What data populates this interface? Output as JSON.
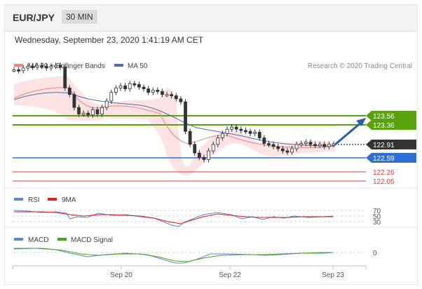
{
  "header": {
    "pair": "EUR/JPY",
    "timeframe": "30 MIN"
  },
  "datetime": "Wednesday, September 23, 2020 1:41:19 AM CET",
  "legend": {
    "ma20": "MA 20 + Bollinger Bands",
    "ma50": "MA 50",
    "credit": "Research © 2020 Trading Central"
  },
  "colors": {
    "resistance": "#58a30c",
    "support": "#2d6fd4",
    "target": "#e23b3b",
    "price": "#333333",
    "ma20": "#f08080",
    "ma50": "#4e6fa8",
    "bollinger": "#fde3e3",
    "rsi": "#5b86d8",
    "rsi_ma": "#e01e1e",
    "macd": "#5b86d8",
    "macd_signal": "#4ca31a"
  },
  "levels": {
    "r1": "123.56",
    "r2": "123.36",
    "last": "122.91",
    "s1": "122.59",
    "t1": "122.26",
    "t2": "122.05"
  },
  "rsi_panel": {
    "label": "RSI",
    "ma_label": "9MA",
    "ticks": [
      "70",
      "50",
      "30"
    ]
  },
  "macd_panel": {
    "label": "MACD",
    "signal_label": "MACD Signal",
    "ticks": [
      "0"
    ]
  },
  "x_axis": {
    "labels": [
      "Sep 20",
      "Sep 22",
      "Sep 23"
    ]
  },
  "chart_data": {
    "type": "candlestick",
    "y_levels": [
      123.56,
      123.36,
      122.91,
      122.59,
      122.26,
      122.05
    ],
    "y_range": [
      121.98,
      125.28
    ],
    "close_series": [
      124.62,
      124.6,
      124.66,
      124.7,
      124.68,
      124.72,
      124.7,
      124.66,
      124.7,
      124.72,
      124.68,
      124.2,
      124.05,
      123.75,
      123.6,
      123.62,
      123.58,
      123.7,
      123.6,
      123.75,
      123.9,
      124.1,
      124.2,
      124.25,
      124.18,
      124.3,
      124.28,
      124.22,
      124.18,
      124.1,
      124.15,
      124.12,
      124.05,
      124.05,
      124.02,
      123.95,
      123.88,
      123.2,
      122.9,
      122.7,
      122.6,
      122.55,
      122.75,
      122.9,
      123.05,
      123.15,
      123.25,
      123.3,
      123.25,
      123.22,
      123.2,
      123.15,
      123.18,
      123.05,
      122.92,
      122.9,
      122.85,
      122.8,
      122.75,
      122.72,
      122.8,
      122.9,
      122.92,
      122.95,
      122.9,
      122.88,
      122.9,
      122.85,
      122.9,
      122.91
    ],
    "rsi_ticks": [
      70,
      50,
      30
    ],
    "macd_ticks": [
      0
    ]
  }
}
